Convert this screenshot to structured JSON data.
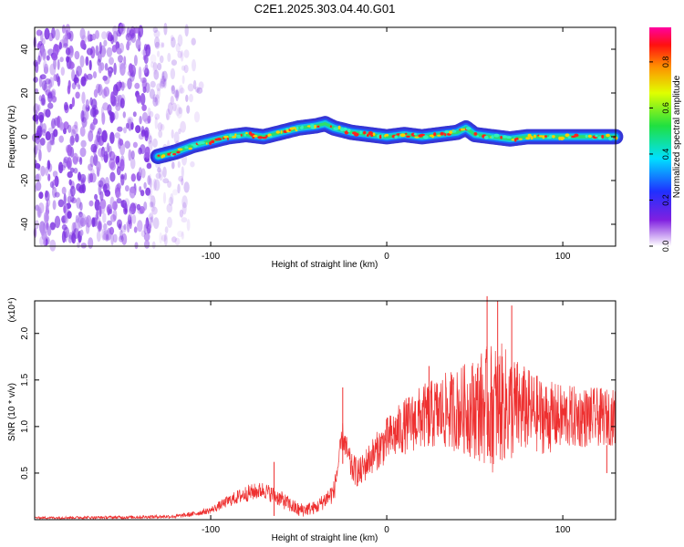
{
  "title": "C2E1.2025.303.04.40.G01",
  "chart_data": [
    {
      "type": "heatmap",
      "title": "C2E1.2025.303.04.40.G01",
      "xlabel": "Height of straight line (km)",
      "ylabel": "Frequency (Hz)",
      "xlim": [
        -200,
        130
      ],
      "ylim": [
        -50,
        50
      ],
      "xticks": [
        -100,
        0,
        100
      ],
      "yticks": [
        -40,
        -20,
        0,
        20,
        40
      ],
      "colorbar": {
        "label": "Normalized spectral amplitude",
        "range": [
          0.0,
          0.95
        ],
        "ticks": [
          0.0,
          0.2,
          0.4,
          0.6,
          0.8
        ]
      },
      "noise_region_km": [
        -200,
        -110
      ],
      "trace": {
        "x": [
          -130,
          -120,
          -110,
          -100,
          -90,
          -80,
          -70,
          -60,
          -50,
          -40,
          -35,
          -30,
          -25,
          -20,
          -10,
          0,
          10,
          20,
          30,
          40,
          45,
          50,
          60,
          70,
          80,
          90,
          100,
          110,
          120,
          130
        ],
        "freq_hz": [
          -9,
          -7,
          -4,
          -2,
          0,
          1,
          0,
          2,
          4,
          5,
          6,
          4,
          3,
          2,
          1,
          0,
          1,
          0,
          1,
          2,
          4,
          1,
          0,
          -1,
          0,
          0,
          0,
          0,
          0,
          0
        ]
      }
    },
    {
      "type": "line",
      "xlabel": "Height of straight line (km)",
      "ylabel": "SNR (10 * v/v)",
      "y_multiplier": "(x10⁴)",
      "xlim": [
        -200,
        130
      ],
      "ylim": [
        0,
        23500
      ],
      "xticks": [
        -100,
        0,
        100
      ],
      "yticks": [
        5000,
        10000,
        15000,
        20000
      ],
      "ytick_labels": [
        "0.5",
        "1.0",
        "1.5",
        "2.0"
      ],
      "color": "#ee3030",
      "envelope": {
        "x": [
          -200,
          -150,
          -120,
          -110,
          -100,
          -90,
          -80,
          -70,
          -60,
          -50,
          -40,
          -30,
          -25,
          -20,
          -15,
          -10,
          0,
          10,
          20,
          30,
          40,
          50,
          55,
          60,
          65,
          70,
          80,
          90,
          100,
          110,
          120,
          130
        ],
        "y": [
          200,
          250,
          350,
          600,
          1000,
          2000,
          2800,
          3200,
          2200,
          1000,
          1300,
          3000,
          9000,
          5500,
          5000,
          6500,
          8500,
          10000,
          11000,
          11500,
          11800,
          12000,
          12200,
          12000,
          12500,
          12000,
          11800,
          11000,
          11000,
          11000,
          11000,
          11000
        ]
      },
      "amplitude": {
        "x": [
          -200,
          -120,
          -100,
          -80,
          -60,
          -40,
          -25,
          -10,
          0,
          20,
          40,
          50,
          60,
          70,
          80,
          100,
          130
        ],
        "y": [
          120,
          200,
          350,
          900,
          900,
          700,
          1500,
          1800,
          2500,
          3500,
          4500,
          5500,
          7000,
          6000,
          4500,
          3500,
          3000
        ]
      },
      "spikes": [
        {
          "x": -64,
          "y": 6200
        },
        {
          "x": -25,
          "y": 14200
        },
        {
          "x": 24,
          "y": 16500
        },
        {
          "x": 57,
          "y": 24000
        },
        {
          "x": 63,
          "y": 23500
        },
        {
          "x": 71,
          "y": 23000
        },
        {
          "x": 125,
          "y": 5000
        }
      ]
    }
  ]
}
